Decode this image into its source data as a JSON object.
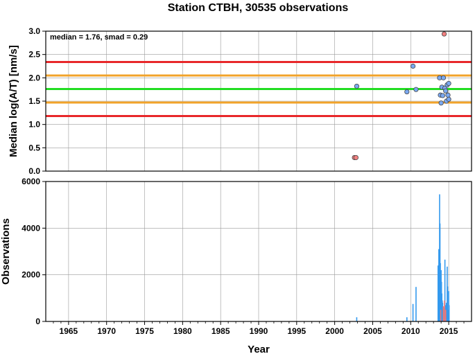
{
  "title": "Station CTBH, 30535 observations",
  "chart_data": [
    {
      "type": "scatter",
      "name": "median-panel",
      "ylabel": "Median log(A/T) [nm/s]",
      "annotation": "median = 1.76, smad = 0.29",
      "xlim": [
        1962,
        2018
      ],
      "ylim": [
        0,
        3
      ],
      "y_ticks": [
        "0.0",
        "0.5",
        "1.0",
        "1.5",
        "2.0",
        "2.5",
        "3.0"
      ],
      "y_tick_values": [
        0,
        0.5,
        1.0,
        1.5,
        2.0,
        2.5,
        3.0
      ],
      "grid": true,
      "hlines": [
        {
          "y": 2.34,
          "color": "#e8272a"
        },
        {
          "y": 2.05,
          "color": "#f2a32a"
        },
        {
          "y": 1.76,
          "color": "#22dd22"
        },
        {
          "y": 1.47,
          "color": "#f2a32a"
        },
        {
          "y": 1.18,
          "color": "#e8272a"
        }
      ],
      "points": [
        {
          "x": 2002.6,
          "y": 0.29,
          "color": "#f28080"
        },
        {
          "x": 2002.8,
          "y": 0.29,
          "color": "#f28080"
        },
        {
          "x": 2002.9,
          "y": 1.82,
          "color": "#7aa8f0"
        },
        {
          "x": 2009.5,
          "y": 1.7,
          "color": "#7aa8f0"
        },
        {
          "x": 2010.3,
          "y": 2.25,
          "color": "#7aa8f0"
        },
        {
          "x": 2010.7,
          "y": 1.75,
          "color": "#7aa8f0"
        },
        {
          "x": 2013.8,
          "y": 2.0,
          "color": "#7aa8f0"
        },
        {
          "x": 2013.9,
          "y": 1.63,
          "color": "#7aa8f0"
        },
        {
          "x": 2014.0,
          "y": 1.46,
          "color": "#7aa8f0"
        },
        {
          "x": 2014.1,
          "y": 1.8,
          "color": "#7aa8f0"
        },
        {
          "x": 2014.2,
          "y": 1.62,
          "color": "#7aa8f0"
        },
        {
          "x": 2014.3,
          "y": 2.0,
          "color": "#7aa8f0"
        },
        {
          "x": 2014.4,
          "y": 2.94,
          "color": "#f28080"
        },
        {
          "x": 2014.5,
          "y": 1.78,
          "color": "#7aa8f0"
        },
        {
          "x": 2014.6,
          "y": 1.72,
          "color": "#7aa8f0"
        },
        {
          "x": 2014.7,
          "y": 1.5,
          "color": "#7aa8f0"
        },
        {
          "x": 2014.8,
          "y": 1.85,
          "color": "#7aa8f0"
        },
        {
          "x": 2014.9,
          "y": 1.63,
          "color": "#7aa8f0"
        },
        {
          "x": 2015.0,
          "y": 1.54,
          "color": "#7aa8f0"
        },
        {
          "x": 2015.0,
          "y": 1.88,
          "color": "#7aa8f0"
        }
      ]
    },
    {
      "type": "bar",
      "name": "observations-panel",
      "ylabel": "Observations",
      "xlabel": "Year",
      "xlim": [
        1962,
        2018
      ],
      "ylim": [
        0,
        6000
      ],
      "x_ticks": [
        "1965",
        "1970",
        "1975",
        "1980",
        "1985",
        "1990",
        "1995",
        "2000",
        "2005",
        "2010",
        "2015"
      ],
      "x_tick_values": [
        1965,
        1970,
        1975,
        1980,
        1985,
        1990,
        1995,
        2000,
        2005,
        2010,
        2015
      ],
      "y_ticks": [
        "0",
        "2000",
        "4000",
        "6000"
      ],
      "y_tick_values": [
        0,
        2000,
        4000,
        6000
      ],
      "grid": true,
      "series": [
        {
          "color": "#3399ee",
          "x": [
            2002.9,
            2009.5,
            2010.3,
            2010.7,
            2013.6,
            2013.7,
            2013.8,
            2013.85,
            2013.9,
            2013.95,
            2014.0,
            2014.05,
            2014.1,
            2014.15,
            2014.2,
            2014.3,
            2014.4,
            2014.5,
            2014.55,
            2014.6,
            2014.7,
            2014.8,
            2014.85,
            2014.9,
            2015.0,
            2015.05
          ],
          "values": [
            180,
            180,
            750,
            1480,
            2400,
            3100,
            5450,
            4200,
            2500,
            2000,
            2200,
            1700,
            1200,
            900,
            800,
            600,
            600,
            2650,
            700,
            400,
            800,
            2350,
            1500,
            500,
            1300,
            700
          ]
        },
        {
          "color": "#ee7777",
          "x": [
            2013.95,
            2014.3,
            2014.45,
            2014.6
          ],
          "values": [
            500,
            650,
            900,
            500
          ]
        }
      ]
    }
  ]
}
